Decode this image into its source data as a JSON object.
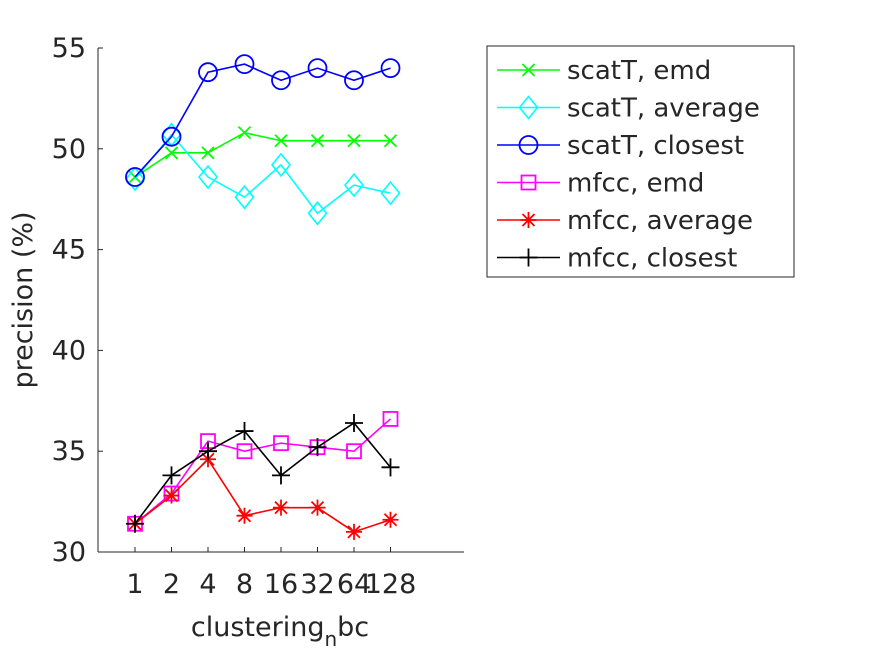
{
  "chart_data": {
    "type": "line",
    "title": "",
    "xlabel": "clustering",
    "xlabel_subscript": "n",
    "xlabel_suffix": "bc",
    "ylabel": "precision (%)",
    "categories": [
      "1",
      "2",
      "4",
      "8",
      "16",
      "32",
      "64",
      "128"
    ],
    "ylim": [
      30,
      55
    ],
    "yticks": [
      "30",
      "35",
      "40",
      "45",
      "50",
      "55"
    ],
    "grid": false,
    "legend_position": "right-top",
    "series": [
      {
        "name": "scatT, emd",
        "color": "#00ff00",
        "marker": "x",
        "values": [
          48.6,
          49.8,
          49.8,
          50.8,
          50.4,
          50.4,
          50.4,
          50.4
        ]
      },
      {
        "name": "scatT, average",
        "color": "#00ffff",
        "marker": "diamond",
        "values": [
          48.5,
          50.7,
          48.6,
          47.6,
          49.2,
          46.8,
          48.2,
          47.8
        ]
      },
      {
        "name": "scatT, closest",
        "color": "#0000ff",
        "marker": "circle",
        "values": [
          48.6,
          50.6,
          53.8,
          54.2,
          53.4,
          54.0,
          53.4,
          54.0
        ]
      },
      {
        "name": "mfcc, emd",
        "color": "#ff00ff",
        "marker": "square",
        "values": [
          31.4,
          32.9,
          35.5,
          35.0,
          35.4,
          35.2,
          35.0,
          36.6
        ]
      },
      {
        "name": "mfcc, average",
        "color": "#ff0000",
        "marker": "asterisk",
        "values": [
          31.4,
          32.8,
          34.6,
          31.8,
          32.2,
          32.2,
          31.0,
          31.6
        ]
      },
      {
        "name": "mfcc, closest",
        "color": "#000000",
        "marker": "plus",
        "values": [
          31.4,
          33.8,
          35.0,
          36.0,
          33.8,
          35.2,
          36.4,
          34.2
        ]
      }
    ]
  }
}
